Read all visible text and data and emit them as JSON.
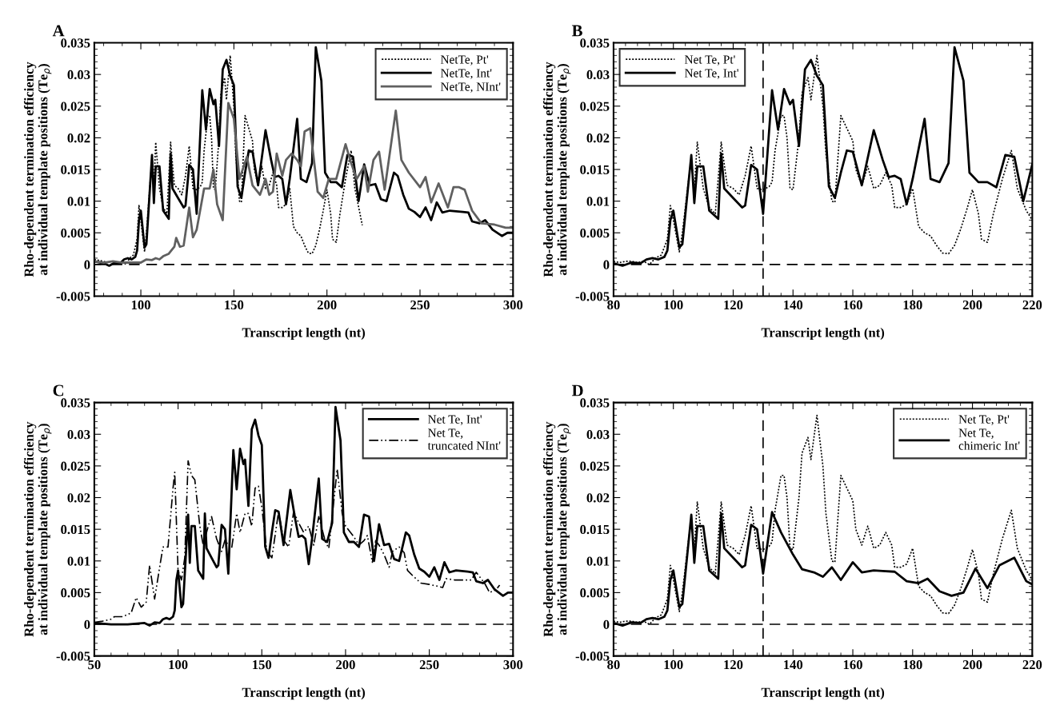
{
  "chart_data": [
    {
      "type": "line",
      "title": "A",
      "xlabel": "Transcript length (nt)",
      "ylabel": "Rho-dependent termination efficiency\nat individual template positions (Te$_{ρ}$)",
      "xlim": [
        75,
        300
      ],
      "xticks": [
        100,
        150,
        200,
        250,
        300
      ],
      "ylim": [
        -0.005,
        0.035
      ],
      "yticks": [
        -0.005,
        0,
        0.005,
        0.01,
        0.015,
        0.02,
        0.025,
        0.03,
        0.035
      ],
      "legend": "top right",
      "grid": false,
      "ref_lines": [
        {
          "axis": "y",
          "value": 0,
          "line_style": "dashed"
        }
      ],
      "series": [
        {
          "name": "NetTe, Pt'",
          "color": "#000000",
          "line_style": "dotted",
          "x": [
            75,
            80,
            82,
            84,
            86,
            88,
            90,
            92,
            94,
            96,
            98,
            99,
            100,
            102,
            103,
            105,
            106,
            107,
            108,
            110,
            112,
            114,
            116,
            118,
            120,
            122,
            124,
            126,
            128,
            130,
            132,
            133,
            134,
            136,
            137,
            138,
            139,
            140,
            142,
            143,
            145,
            146,
            148,
            150,
            151,
            153,
            154,
            156,
            158,
            160,
            161,
            163,
            165,
            167,
            169,
            171,
            173,
            174,
            176,
            178,
            180,
            182,
            184,
            186,
            188,
            190,
            192,
            194,
            196,
            198,
            200,
            202,
            203,
            205,
            207,
            210,
            213,
            215,
            219
          ],
          "values": [
            0.0008,
            0.0005,
            0.0003,
            0.0005,
            0.0005,
            0.0003,
            0.0005,
            0.0,
            0.001,
            0.0015,
            0.004,
            0.0093,
            0.007,
            0.002,
            0.005,
            0.013,
            0.0165,
            0.012,
            0.0193,
            0.012,
            0.009,
            0.008,
            0.0193,
            0.0125,
            0.012,
            0.011,
            0.014,
            0.0187,
            0.012,
            0.0118,
            0.0123,
            0.013,
            0.018,
            0.0235,
            0.0235,
            0.02,
            0.012,
            0.0118,
            0.02,
            0.027,
            0.0295,
            0.026,
            0.033,
            0.025,
            0.0175,
            0.01,
            0.0098,
            0.0235,
            0.0215,
            0.0195,
            0.015,
            0.0125,
            0.0155,
            0.012,
            0.0125,
            0.0145,
            0.0125,
            0.009,
            0.009,
            0.0095,
            0.012,
            0.006,
            0.005,
            0.0045,
            0.003,
            0.0018,
            0.0017,
            0.003,
            0.0055,
            0.0085,
            0.0118,
            0.008,
            0.004,
            0.0035,
            0.008,
            0.0135,
            0.018,
            0.012,
            0.0062
          ]
        },
        {
          "name": "NetTe, Int'",
          "color": "#000000",
          "line_style": "solid",
          "x": [
            75,
            80,
            83,
            86,
            89,
            91,
            93,
            95,
            97,
            98,
            99,
            100,
            102,
            103,
            106,
            107,
            108,
            110,
            112,
            115,
            116,
            117,
            120,
            123,
            124,
            126,
            128,
            130,
            133,
            135,
            137,
            139,
            140,
            142,
            144,
            146,
            148,
            150,
            152,
            154,
            156,
            158,
            160,
            163,
            167,
            170,
            172,
            174,
            176,
            178,
            180,
            184,
            186,
            189,
            192,
            194,
            197,
            199,
            202,
            205,
            208,
            211,
            214,
            217,
            220,
            223,
            226,
            229,
            232,
            236,
            238,
            241,
            244,
            247,
            250,
            253,
            256,
            259,
            262,
            266,
            273,
            276,
            278,
            282,
            285,
            289,
            294,
            297,
            300
          ],
          "values": [
            0.0005,
            0.0002,
            -0.0002,
            0.0003,
            0.0002,
            0.0008,
            0.001,
            0.0008,
            0.0012,
            0.0022,
            0.007,
            0.0085,
            0.0027,
            0.0032,
            0.0173,
            0.0097,
            0.0155,
            0.0155,
            0.0085,
            0.0072,
            0.0175,
            0.012,
            0.0105,
            0.009,
            0.0093,
            0.0157,
            0.015,
            0.008,
            0.0275,
            0.0213,
            0.0277,
            0.0253,
            0.026,
            0.0187,
            0.0308,
            0.0323,
            0.0298,
            0.0283,
            0.0123,
            0.0105,
            0.0145,
            0.018,
            0.0178,
            0.0125,
            0.0212,
            0.0165,
            0.0138,
            0.014,
            0.0135,
            0.0095,
            0.0135,
            0.023,
            0.0135,
            0.013,
            0.016,
            0.0343,
            0.029,
            0.0145,
            0.013,
            0.013,
            0.0122,
            0.0173,
            0.017,
            0.01,
            0.0158,
            0.0125,
            0.0127,
            0.0103,
            0.01,
            0.0145,
            0.014,
            0.011,
            0.0088,
            0.0083,
            0.0075,
            0.009,
            0.007,
            0.0098,
            0.0082,
            0.0085,
            0.0083,
            0.0082,
            0.0068,
            0.0065,
            0.007,
            0.0055,
            0.0045,
            0.005,
            0.005
          ]
        },
        {
          "name": "NetTe, NInt'",
          "color": "#606060",
          "line_style": "solid",
          "x": [
            75,
            80,
            85,
            90,
            95,
            100,
            103,
            106,
            108,
            110,
            112,
            115,
            118,
            119,
            121,
            123,
            126,
            128,
            130,
            134,
            137,
            139,
            141,
            144,
            147,
            150,
            153,
            157,
            160,
            164,
            167,
            169,
            171,
            173,
            176,
            178,
            181,
            184,
            186,
            188,
            191,
            195,
            198,
            201,
            205,
            210,
            213,
            216,
            220,
            222,
            225,
            228,
            231,
            237,
            240,
            244,
            250,
            253,
            256,
            260,
            265,
            268,
            271,
            274,
            278,
            283,
            290,
            296,
            300
          ],
          "values": [
            0.0005,
            0.0003,
            0.0005,
            0.0003,
            0.0003,
            0.0003,
            0.0008,
            0.0007,
            0.001,
            0.0008,
            0.0013,
            0.0017,
            0.0028,
            0.0042,
            0.0028,
            0.003,
            0.009,
            0.0043,
            0.0055,
            0.012,
            0.012,
            0.015,
            0.0095,
            0.007,
            0.0255,
            0.023,
            0.0135,
            0.017,
            0.0125,
            0.011,
            0.0135,
            0.011,
            0.0115,
            0.0175,
            0.014,
            0.0165,
            0.0175,
            0.0165,
            0.0155,
            0.021,
            0.0215,
            0.0115,
            0.0105,
            0.0135,
            0.0135,
            0.019,
            0.016,
            0.0135,
            0.0155,
            0.0115,
            0.0165,
            0.0178,
            0.0118,
            0.0243,
            0.0165,
            0.0145,
            0.0122,
            0.0138,
            0.0098,
            0.0128,
            0.009,
            0.0122,
            0.0122,
            0.0118,
            0.0085,
            0.0065,
            0.0063,
            0.0058,
            0.0058
          ]
        }
      ]
    },
    {
      "type": "line",
      "title": "B",
      "xlabel": "Transcript length (nt)",
      "ylabel": "Rho-dependent termination efficiency\nat individual template positions (Te$_{ρ}$)",
      "xlim": [
        80,
        220
      ],
      "xticks": [
        80,
        100,
        120,
        140,
        160,
        180,
        200,
        220
      ],
      "ylim": [
        -0.005,
        0.035
      ],
      "yticks": [
        -0.005,
        0,
        0.005,
        0.01,
        0.015,
        0.02,
        0.025,
        0.03,
        0.035
      ],
      "legend": "top left",
      "grid": false,
      "ref_lines": [
        {
          "axis": "y",
          "value": 0,
          "line_style": "dashed"
        },
        {
          "axis": "x",
          "value": 130,
          "line_style": "dashed"
        }
      ],
      "series": [
        {
          "name": "Net Te, Pt'",
          "color": "#000000",
          "line_style": "dotted",
          "x": [
            80,
            82,
            84,
            86,
            88,
            90,
            92,
            94,
            96,
            98,
            99,
            100,
            102,
            103,
            105,
            106,
            107,
            108,
            110,
            112,
            114,
            116,
            118,
            120,
            122,
            124,
            126,
            128,
            130,
            132,
            133,
            134,
            136,
            137,
            138,
            139,
            140,
            142,
            143,
            145,
            146,
            148,
            150,
            151,
            153,
            154,
            156,
            158,
            160,
            161,
            163,
            165,
            167,
            169,
            171,
            173,
            174,
            176,
            178,
            180,
            182,
            184,
            186,
            188,
            190,
            192,
            194,
            196,
            198,
            200,
            202,
            203,
            205,
            207,
            210,
            213,
            215,
            218,
            220
          ],
          "values": [
            0.0005,
            0.0003,
            0.0005,
            0.0005,
            0.0003,
            0.0005,
            0.0,
            0.001,
            0.0015,
            0.004,
            0.0093,
            0.007,
            0.002,
            0.005,
            0.013,
            0.0165,
            0.012,
            0.0193,
            0.012,
            0.009,
            0.008,
            0.0193,
            0.0125,
            0.012,
            0.011,
            0.014,
            0.0187,
            0.012,
            0.0118,
            0.0123,
            0.013,
            0.018,
            0.0235,
            0.0235,
            0.02,
            0.012,
            0.0118,
            0.02,
            0.027,
            0.0295,
            0.026,
            0.033,
            0.025,
            0.0175,
            0.01,
            0.0098,
            0.0235,
            0.0215,
            0.0195,
            0.015,
            0.0125,
            0.0155,
            0.012,
            0.0125,
            0.0145,
            0.0125,
            0.009,
            0.009,
            0.0095,
            0.012,
            0.006,
            0.005,
            0.0045,
            0.003,
            0.0018,
            0.0017,
            0.003,
            0.0055,
            0.0085,
            0.0118,
            0.008,
            0.004,
            0.0035,
            0.008,
            0.0135,
            0.018,
            0.012,
            0.0085,
            0.007
          ]
        },
        {
          "name": "Net Te, Int'",
          "color": "#000000",
          "line_style": "solid",
          "x": [
            80,
            83,
            86,
            89,
            91,
            93,
            95,
            97,
            98,
            99,
            100,
            102,
            103,
            106,
            107,
            108,
            110,
            112,
            115,
            116,
            117,
            120,
            123,
            124,
            126,
            128,
            130,
            133,
            135,
            137,
            139,
            140,
            142,
            144,
            146,
            148,
            150,
            152,
            154,
            156,
            158,
            160,
            163,
            167,
            170,
            172,
            174,
            176,
            178,
            180,
            184,
            186,
            189,
            192,
            194,
            197,
            199,
            202,
            205,
            208,
            211,
            214,
            217,
            220
          ],
          "values": [
            0.0002,
            -0.0002,
            0.0003,
            0.0002,
            0.0008,
            0.001,
            0.0008,
            0.0012,
            0.0022,
            0.007,
            0.0085,
            0.0027,
            0.0032,
            0.0173,
            0.0097,
            0.0155,
            0.0155,
            0.0085,
            0.0072,
            0.0175,
            0.012,
            0.0105,
            0.009,
            0.0093,
            0.0157,
            0.015,
            0.008,
            0.0275,
            0.0213,
            0.0277,
            0.0253,
            0.026,
            0.0187,
            0.0308,
            0.0323,
            0.0298,
            0.0283,
            0.0123,
            0.0105,
            0.0145,
            0.018,
            0.0178,
            0.0125,
            0.0212,
            0.0165,
            0.0138,
            0.014,
            0.0135,
            0.0095,
            0.0135,
            0.023,
            0.0135,
            0.013,
            0.016,
            0.0343,
            0.029,
            0.0145,
            0.013,
            0.013,
            0.0122,
            0.0173,
            0.017,
            0.01,
            0.0158
          ]
        }
      ]
    },
    {
      "type": "line",
      "title": "C",
      "xlabel": "Transcript length (nt)",
      "ylabel": "Rho-dependent termination efficiency\nat individual template positions (Te$_{ρ}$)",
      "xlim": [
        50,
        300
      ],
      "xticks": [
        50,
        100,
        150,
        200,
        250,
        300
      ],
      "ylim": [
        -0.005,
        0.035
      ],
      "yticks": [
        -0.005,
        0,
        0.005,
        0.01,
        0.015,
        0.02,
        0.025,
        0.03,
        0.035
      ],
      "legend": "top right",
      "grid": false,
      "ref_lines": [
        {
          "axis": "y",
          "value": 0,
          "line_style": "dashed"
        }
      ],
      "series": [
        {
          "name": "Net Te, Int'",
          "color": "#000000",
          "line_style": "solid",
          "x": [
            50,
            60,
            70,
            80,
            83,
            86,
            89,
            91,
            93,
            95,
            97,
            98,
            99,
            100,
            102,
            103,
            106,
            107,
            108,
            110,
            112,
            115,
            116,
            117,
            120,
            123,
            124,
            126,
            128,
            130,
            133,
            135,
            137,
            139,
            140,
            142,
            144,
            146,
            148,
            150,
            152,
            154,
            156,
            158,
            160,
            163,
            167,
            170,
            172,
            174,
            176,
            178,
            180,
            184,
            186,
            189,
            192,
            194,
            197,
            199,
            202,
            205,
            208,
            211,
            214,
            217,
            220,
            223,
            226,
            229,
            232,
            236,
            238,
            241,
            244,
            247,
            250,
            253,
            256,
            259,
            262,
            266,
            273,
            276,
            278,
            282,
            285,
            289,
            294,
            297,
            300
          ],
          "values": [
            0.0002,
            0.0,
            0.0,
            0.0002,
            -0.0002,
            0.0003,
            0.0002,
            0.0008,
            0.001,
            0.0008,
            0.0012,
            0.0022,
            0.007,
            0.0085,
            0.0027,
            0.0032,
            0.0173,
            0.0097,
            0.0155,
            0.0155,
            0.0085,
            0.0072,
            0.0175,
            0.012,
            0.0105,
            0.009,
            0.0093,
            0.0157,
            0.015,
            0.008,
            0.0275,
            0.0213,
            0.0277,
            0.0253,
            0.026,
            0.0187,
            0.0308,
            0.0323,
            0.0298,
            0.0283,
            0.0123,
            0.0105,
            0.0145,
            0.018,
            0.0178,
            0.0125,
            0.0212,
            0.0165,
            0.0138,
            0.014,
            0.0135,
            0.0095,
            0.0135,
            0.023,
            0.0135,
            0.013,
            0.016,
            0.0343,
            0.029,
            0.0145,
            0.013,
            0.013,
            0.0122,
            0.0173,
            0.017,
            0.01,
            0.0158,
            0.0125,
            0.0127,
            0.0103,
            0.01,
            0.0145,
            0.014,
            0.011,
            0.0088,
            0.0083,
            0.0075,
            0.009,
            0.007,
            0.0098,
            0.0082,
            0.0085,
            0.0083,
            0.0082,
            0.0068,
            0.0065,
            0.007,
            0.0055,
            0.0045,
            0.005,
            0.005
          ]
        },
        {
          "name": "Net Te,\ntruncated NInt'",
          "color": "#000000",
          "line_style": "dashdot",
          "x": [
            50,
            55,
            60,
            62,
            67,
            72,
            75,
            78,
            81,
            83,
            86,
            89,
            91,
            94,
            97,
            98,
            100,
            102,
            104,
            106,
            108,
            110,
            113,
            115,
            118,
            120,
            123,
            126,
            128,
            130,
            132,
            135,
            137,
            140,
            142,
            144,
            146,
            148,
            150,
            153,
            156,
            160,
            163,
            166,
            169,
            172,
            175,
            178,
            181,
            184,
            186,
            188,
            190,
            192,
            195,
            198,
            200,
            205,
            208,
            211,
            213,
            216,
            218,
            220,
            223,
            226,
            228,
            232,
            235,
            237,
            240,
            245,
            250,
            255,
            258,
            260,
            265,
            270,
            275,
            278,
            283,
            286,
            290,
            292
          ],
          "values": [
            0.0003,
            0.0005,
            0.0008,
            0.0012,
            0.0012,
            0.0018,
            0.0042,
            0.0027,
            0.0035,
            0.0093,
            0.004,
            0.009,
            0.0122,
            0.0122,
            0.0215,
            0.024,
            0.0085,
            0.007,
            0.0105,
            0.0258,
            0.0235,
            0.0228,
            0.0155,
            0.0125,
            0.0155,
            0.017,
            0.0135,
            0.0115,
            0.0133,
            0.0125,
            0.012,
            0.0175,
            0.0145,
            0.0175,
            0.0175,
            0.0155,
            0.0215,
            0.0218,
            0.0185,
            0.0115,
            0.0105,
            0.0178,
            0.0133,
            0.0122,
            0.0178,
            0.016,
            0.0145,
            0.0155,
            0.0125,
            0.017,
            0.015,
            0.013,
            0.012,
            0.017,
            0.0245,
            0.0175,
            0.0155,
            0.0138,
            0.0125,
            0.0132,
            0.014,
            0.0098,
            0.0132,
            0.0125,
            0.011,
            0.009,
            0.0115,
            0.0122,
            0.0113,
            0.0085,
            0.0077,
            0.0065,
            0.0063,
            0.006,
            0.0058,
            0.0072,
            0.007,
            0.007,
            0.007,
            0.0082,
            0.0065,
            0.005,
            0.0055,
            0.0062
          ]
        }
      ]
    },
    {
      "type": "line",
      "title": "D",
      "xlabel": "Transcript length (nt)",
      "ylabel": "Rho-dependent termination efficiency\nat individual template positions (Te$_{ρ}$)",
      "xlim": [
        80,
        220
      ],
      "xticks": [
        80,
        100,
        120,
        140,
        160,
        180,
        200,
        220
      ],
      "ylim": [
        -0.005,
        0.035
      ],
      "yticks": [
        -0.005,
        0,
        0.005,
        0.01,
        0.015,
        0.02,
        0.025,
        0.03,
        0.035
      ],
      "legend": "top right",
      "grid": false,
      "ref_lines": [
        {
          "axis": "y",
          "value": 0,
          "line_style": "dashed"
        },
        {
          "axis": "x",
          "value": 130,
          "line_style": "dashed"
        }
      ],
      "series": [
        {
          "name": "Net Te, Pt'",
          "color": "#000000",
          "line_style": "dotted",
          "x": [
            80,
            82,
            84,
            86,
            88,
            90,
            92,
            94,
            96,
            98,
            99,
            100,
            102,
            103,
            105,
            106,
            107,
            108,
            110,
            112,
            114,
            116,
            118,
            120,
            122,
            124,
            126,
            128,
            130,
            132,
            133,
            134,
            136,
            137,
            138,
            139,
            140,
            142,
            143,
            145,
            146,
            148,
            150,
            151,
            153,
            154,
            156,
            158,
            160,
            161,
            163,
            165,
            167,
            169,
            171,
            173,
            174,
            176,
            178,
            180,
            182,
            184,
            186,
            188,
            190,
            192,
            194,
            196,
            198,
            200,
            202,
            203,
            205,
            207,
            210,
            213,
            215,
            218,
            220
          ],
          "values": [
            0.0005,
            0.0003,
            0.0005,
            0.0005,
            0.0003,
            0.0005,
            0.0,
            0.001,
            0.0015,
            0.004,
            0.0093,
            0.007,
            0.002,
            0.005,
            0.013,
            0.0165,
            0.012,
            0.0193,
            0.012,
            0.009,
            0.008,
            0.0193,
            0.0125,
            0.012,
            0.011,
            0.014,
            0.0187,
            0.012,
            0.0118,
            0.0123,
            0.013,
            0.018,
            0.0235,
            0.0235,
            0.02,
            0.012,
            0.0118,
            0.02,
            0.027,
            0.0295,
            0.026,
            0.033,
            0.025,
            0.0175,
            0.01,
            0.0098,
            0.0235,
            0.0215,
            0.0195,
            0.015,
            0.0125,
            0.0155,
            0.012,
            0.0125,
            0.0145,
            0.0125,
            0.009,
            0.009,
            0.0095,
            0.012,
            0.006,
            0.005,
            0.0045,
            0.003,
            0.0018,
            0.0017,
            0.003,
            0.0055,
            0.0085,
            0.0118,
            0.008,
            0.004,
            0.0035,
            0.008,
            0.0135,
            0.018,
            0.012,
            0.0085,
            0.007
          ]
        },
        {
          "name": "Net Te,\nchimeric Int'",
          "color": "#000000",
          "line_style": "solid",
          "x": [
            80,
            83,
            86,
            89,
            91,
            93,
            95,
            97,
            98,
            99,
            100,
            102,
            103,
            106,
            107,
            108,
            110,
            112,
            115,
            116,
            117,
            120,
            123,
            124,
            126,
            128,
            130,
            133,
            136,
            140,
            143,
            147,
            150,
            153,
            156,
            160,
            163,
            167,
            170,
            174,
            178,
            182,
            185,
            189,
            193,
            197,
            201,
            205,
            209,
            214,
            218,
            220
          ],
          "values": [
            0.0002,
            -0.0002,
            0.0003,
            0.0002,
            0.0008,
            0.001,
            0.0008,
            0.0012,
            0.0022,
            0.007,
            0.0085,
            0.0027,
            0.0032,
            0.0173,
            0.0097,
            0.0155,
            0.0155,
            0.0085,
            0.0072,
            0.0175,
            0.012,
            0.0105,
            0.009,
            0.0093,
            0.0157,
            0.015,
            0.008,
            0.0177,
            0.0145,
            0.011,
            0.0087,
            0.0082,
            0.0075,
            0.009,
            0.007,
            0.0098,
            0.0082,
            0.0085,
            0.0084,
            0.0083,
            0.0068,
            0.0065,
            0.0072,
            0.0052,
            0.0045,
            0.005,
            0.0088,
            0.0057,
            0.0093,
            0.0105,
            0.0068,
            0.0063
          ]
        }
      ]
    }
  ]
}
